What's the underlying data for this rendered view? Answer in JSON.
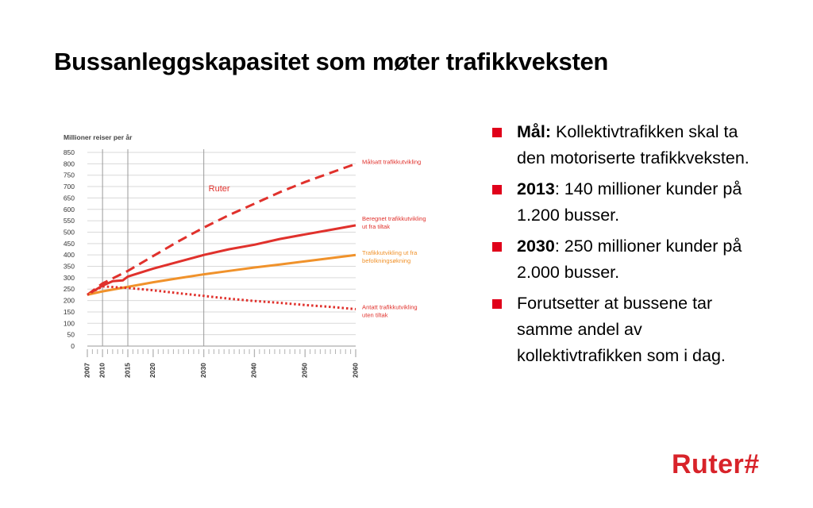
{
  "slide": {
    "title": "Bussanleggskapasitet som møter trafikkveksten"
  },
  "bullets": [
    {
      "bold": "Mål:",
      "text": " Kollektivtrafikken skal ta den motoriserte trafikkveksten."
    },
    {
      "bold": "2013",
      "text": ": 140 millioner kunder på 1.200 busser."
    },
    {
      "bold": "2030",
      "text": ": 250 millioner kunder på 2.000 busser."
    },
    {
      "bold": "",
      "text": "Forutsetter at bussene tar samme andel av kollektivtrafikken som i dag."
    }
  ],
  "logo": {
    "text": "Ruter#",
    "color": "#d8232a"
  },
  "chart_data": {
    "type": "line",
    "ylabel": "Millioner reiser per år",
    "ylim": [
      0,
      850
    ],
    "yticks": [
      0,
      50,
      100,
      150,
      200,
      250,
      300,
      350,
      400,
      450,
      500,
      550,
      600,
      650,
      700,
      750,
      800,
      850
    ],
    "xlim": [
      2007,
      2060
    ],
    "xticks": [
      2007,
      2010,
      2015,
      2020,
      2030,
      2040,
      2050,
      2060
    ],
    "vlines": [
      2010,
      2015,
      2030
    ],
    "grid": true,
    "annotation": {
      "text": "Ruter",
      "x": 2030,
      "y": 680,
      "color": "#e0312c"
    },
    "series": [
      {
        "name": "Målsatt trafikkutvikling",
        "color": "#e0312c",
        "dash": "dashed",
        "x": [
          2007,
          2010,
          2015,
          2020,
          2025,
          2030,
          2035,
          2040,
          2045,
          2050,
          2055,
          2060
        ],
        "y": [
          225,
          275,
          330,
          395,
          460,
          520,
          575,
          625,
          675,
          720,
          760,
          800
        ]
      },
      {
        "name": "Beregnet trafikkutvikling ut fra tiltak",
        "color": "#e0312c",
        "dash": "solid",
        "x": [
          2007,
          2010,
          2012,
          2014,
          2015,
          2020,
          2025,
          2030,
          2035,
          2040,
          2045,
          2050,
          2055,
          2060
        ],
        "y": [
          225,
          265,
          285,
          288,
          305,
          340,
          370,
          400,
          425,
          445,
          470,
          490,
          510,
          530
        ]
      },
      {
        "name": "Trafikkutvikling ut fra befolkningsøkning",
        "color": "#f0922b",
        "dash": "solid",
        "x": [
          2007,
          2010,
          2015,
          2020,
          2025,
          2030,
          2035,
          2040,
          2045,
          2050,
          2055,
          2060
        ],
        "y": [
          225,
          240,
          260,
          280,
          298,
          315,
          330,
          345,
          358,
          372,
          386,
          400
        ]
      },
      {
        "name": "Antatt trafikkutvikling uten tiltak",
        "color": "#e0312c",
        "dash": "dotted",
        "x": [
          2007,
          2010,
          2015,
          2020,
          2025,
          2030,
          2035,
          2040,
          2045,
          2050,
          2055,
          2060
        ],
        "y": [
          225,
          262,
          255,
          245,
          232,
          220,
          208,
          198,
          190,
          180,
          172,
          162
        ]
      }
    ]
  }
}
